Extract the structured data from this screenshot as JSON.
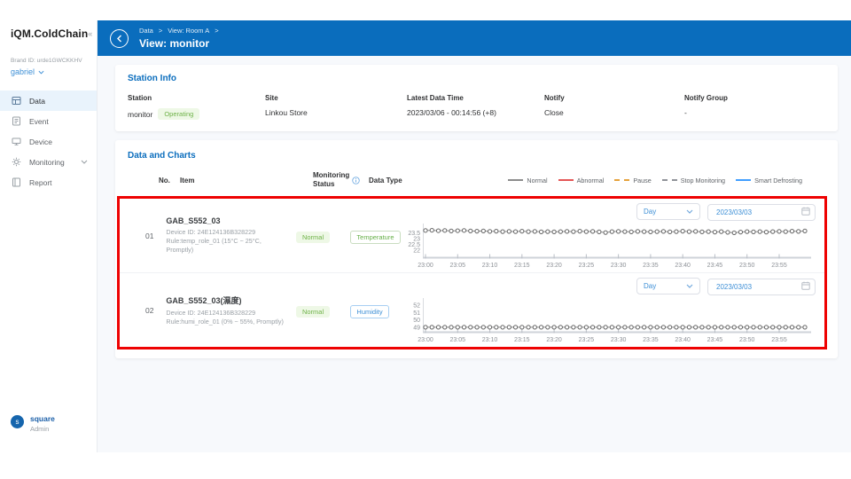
{
  "app": {
    "logo": "iQM.ColdChain",
    "collapse_glyph": "«"
  },
  "sidebar": {
    "brand_id": "Brand ID: urde1GWCKKHV",
    "user_name": "gabriel",
    "items": [
      {
        "label": "Data",
        "active": true
      },
      {
        "label": "Event",
        "active": false
      },
      {
        "label": "Device",
        "active": false
      },
      {
        "label": "Monitoring",
        "active": false,
        "expandable": true
      },
      {
        "label": "Report",
        "active": false
      }
    ],
    "footer": {
      "avatar_letter": "s",
      "name": "square",
      "role": "Admin"
    }
  },
  "header": {
    "breadcrumb": [
      "Data",
      "View: Room A"
    ],
    "sep": ">",
    "title": "View: monitor"
  },
  "station_info": {
    "title": "Station Info",
    "fields": [
      {
        "label": "Station",
        "value": "monitor",
        "badge": "Operating"
      },
      {
        "label": "Site",
        "value": "Linkou Store"
      },
      {
        "label": "Latest Data Time",
        "value": "2023/03/06 - 00:14:56 (+8)"
      },
      {
        "label": "Notify",
        "value": "Close"
      },
      {
        "label": "Notify Group",
        "value": "-"
      }
    ]
  },
  "charts_section": {
    "title": "Data and Charts",
    "columns": {
      "no": "No.",
      "item": "Item",
      "status": "Monitoring Status",
      "type": "Data Type"
    },
    "legend": [
      {
        "label": "Normal",
        "color": "#8c8c8c",
        "dash": false
      },
      {
        "label": "Abnormal",
        "color": "#e45656",
        "dash": false
      },
      {
        "label": "Pause",
        "color": "#e6a23c",
        "dash": true
      },
      {
        "label": "Stop Monitoring",
        "color": "#909399",
        "dash": true
      },
      {
        "label": "Smart Defrosting",
        "color": "#409eff",
        "dash": false
      }
    ],
    "rows": [
      {
        "no": "01",
        "item": "GAB_S552_03",
        "device": "Device ID: 24E124136B328229",
        "rule": "Rule:temp_role_01 (15°C ~ 25°C, Promptly)",
        "status": "Normal",
        "type": "Temperature",
        "period": "Day",
        "date": "2023/03/03"
      },
      {
        "no": "02",
        "item": "GAB_S552_03(濕度)",
        "device": "Device ID: 24E124136B328229",
        "rule": "Rule:humi_role_01 (0% ~ 55%, Promptly)",
        "status": "Normal",
        "type": "Humidity",
        "period": "Day",
        "date": "2023/03/03"
      }
    ]
  },
  "chart_data": [
    {
      "type": "line",
      "title": "GAB_S552_03 Temperature (°C) — 2023/03/03",
      "series_status": "Normal",
      "x_tick_labels": [
        "23:00",
        "23:05",
        "23:10",
        "23:15",
        "23:20",
        "23:25",
        "23:30",
        "23:35",
        "23:40",
        "23:45",
        "23:50",
        "23:55"
      ],
      "x_tick_every": 5,
      "values": [
        23.7,
        23.72,
        23.68,
        23.7,
        23.66,
        23.68,
        23.7,
        23.66,
        23.64,
        23.66,
        23.62,
        23.64,
        23.6,
        23.62,
        23.6,
        23.64,
        23.6,
        23.62,
        23.58,
        23.6,
        23.58,
        23.6,
        23.62,
        23.6,
        23.64,
        23.6,
        23.62,
        23.58,
        23.52,
        23.6,
        23.62,
        23.6,
        23.58,
        23.62,
        23.6,
        23.58,
        23.6,
        23.62,
        23.58,
        23.6,
        23.64,
        23.6,
        23.62,
        23.58,
        23.6,
        23.56,
        23.6,
        23.54,
        23.5,
        23.56,
        23.6,
        23.58,
        23.6,
        23.56,
        23.6,
        23.62,
        23.6,
        23.64,
        23.62,
        23.66
      ],
      "yticks": [
        23.5,
        23,
        22.5,
        22
      ],
      "ytick_labels": [
        "23.5",
        "23",
        "22.5",
        "22"
      ],
      "ylim": [
        21.45,
        24.15
      ],
      "line_color": "#8c8c8c",
      "marker_color": "#666666",
      "marker": "open-circle",
      "grid": false
    },
    {
      "type": "line",
      "title": "GAB_S552_03 Humidity (%) — 2023/03/03",
      "series_status": "Normal",
      "x_tick_labels": [
        "23:00",
        "23:05",
        "23:10",
        "23:15",
        "23:20",
        "23:25",
        "23:30",
        "23:35",
        "23:40",
        "23:45",
        "23:50",
        "23:55"
      ],
      "x_tick_every": 5,
      "values": [
        49,
        49,
        49,
        49,
        49,
        49,
        49,
        49,
        49,
        49,
        49,
        49,
        49,
        49,
        49,
        49,
        49,
        49,
        49,
        49,
        49,
        49,
        49,
        49,
        49,
        49,
        49,
        49,
        49,
        49,
        49,
        49,
        49,
        49,
        49,
        49,
        49,
        49,
        49,
        49,
        49,
        49,
        49,
        49,
        49,
        49,
        49,
        49,
        49,
        49,
        49,
        49,
        49,
        49,
        49,
        49,
        49,
        49,
        49,
        49
      ],
      "yticks": [
        52,
        51,
        50,
        49
      ],
      "ytick_labels": [
        "52",
        "51",
        "50",
        "49"
      ],
      "ylim": [
        48.5,
        52.75
      ],
      "line_color": "#8c8c8c",
      "marker_color": "#666666",
      "marker": "open-circle",
      "grid": false
    }
  ],
  "colors": {
    "header_blue": "#0a6dbd",
    "accent_blue": "#3d8fd6",
    "success_green": "#6fb249",
    "annotation_red": "#ee0202"
  }
}
